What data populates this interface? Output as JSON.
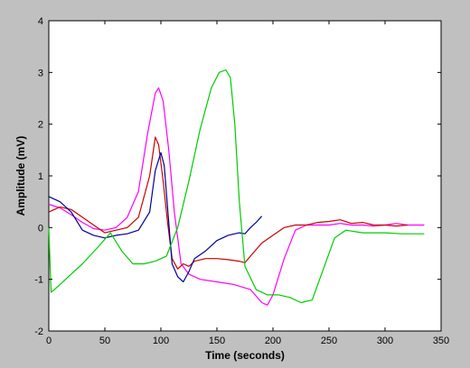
{
  "chart_data": {
    "type": "line",
    "title": "",
    "xlabel": "Time (seconds)",
    "ylabel": "Amplitude (mV)",
    "xlim": [
      0,
      350
    ],
    "ylim": [
      -2,
      4
    ],
    "xticks": [
      "0",
      "50",
      "100",
      "150",
      "200",
      "250",
      "300",
      "350"
    ],
    "yticks": [
      "-2",
      "-1",
      "0",
      "1",
      "2",
      "3",
      "4"
    ],
    "grid": false,
    "legend": "none",
    "series": [
      {
        "color": "#ff00ff",
        "x": [
          0,
          10,
          20,
          30,
          40,
          50,
          60,
          70,
          80,
          88,
          95,
          98,
          102,
          107,
          112,
          118,
          125,
          135,
          150,
          165,
          180,
          190,
          195,
          200,
          210,
          220,
          230,
          240,
          250,
          260,
          270,
          280,
          290,
          300,
          310,
          320,
          335
        ],
        "y": [
          0.45,
          0.38,
          0.25,
          0.1,
          -0.02,
          -0.05,
          0.0,
          0.2,
          0.7,
          1.8,
          2.6,
          2.7,
          2.45,
          1.5,
          0.3,
          -0.7,
          -0.9,
          -1.0,
          -1.05,
          -1.1,
          -1.2,
          -1.45,
          -1.5,
          -1.3,
          -0.6,
          -0.05,
          0.05,
          0.05,
          0.05,
          0.08,
          0.05,
          0.05,
          0.03,
          0.05,
          0.08,
          0.05,
          0.05
        ]
      },
      {
        "color": "#cc0000",
        "x": [
          0,
          10,
          20,
          30,
          40,
          50,
          60,
          70,
          80,
          90,
          95,
          98,
          102,
          106,
          110,
          115,
          120,
          125,
          130,
          140,
          150,
          160,
          170,
          175,
          180,
          190,
          200,
          210,
          220,
          230,
          240,
          250,
          260,
          270,
          280,
          290,
          300,
          310,
          320
        ],
        "y": [
          0.3,
          0.4,
          0.35,
          0.2,
          0.05,
          -0.1,
          -0.05,
          0.0,
          0.2,
          1.0,
          1.75,
          1.6,
          0.9,
          0.1,
          -0.6,
          -0.8,
          -0.7,
          -0.75,
          -0.65,
          -0.6,
          -0.6,
          -0.62,
          -0.65,
          -0.68,
          -0.55,
          -0.3,
          -0.15,
          0.0,
          0.05,
          0.05,
          0.1,
          0.12,
          0.15,
          0.08,
          0.1,
          0.05,
          0.05,
          0.03,
          0.05
        ]
      },
      {
        "color": "#000099",
        "x": [
          0,
          10,
          20,
          30,
          40,
          50,
          60,
          70,
          80,
          90,
          95,
          100,
          103,
          107,
          110,
          115,
          120,
          125,
          130,
          140,
          150,
          160,
          170,
          175,
          180,
          185,
          190
        ],
        "y": [
          0.6,
          0.5,
          0.3,
          -0.05,
          -0.15,
          -0.2,
          -0.15,
          -0.12,
          -0.05,
          0.3,
          1.1,
          1.45,
          1.2,
          0.1,
          -0.7,
          -0.95,
          -1.05,
          -0.85,
          -0.6,
          -0.45,
          -0.25,
          -0.15,
          -0.1,
          -0.12,
          0.0,
          0.1,
          0.22
        ]
      },
      {
        "color": "#00cc00",
        "x": [
          0,
          2,
          5,
          15,
          30,
          45,
          55,
          65,
          75,
          85,
          95,
          105,
          115,
          125,
          135,
          145,
          152,
          158,
          162,
          166,
          170,
          175,
          185,
          195,
          205,
          215,
          225,
          235,
          245,
          255,
          265,
          280,
          300,
          315,
          335
        ],
        "y": [
          0.0,
          -1.25,
          -1.2,
          -1.0,
          -0.7,
          -0.35,
          -0.1,
          -0.45,
          -0.7,
          -0.7,
          -0.65,
          -0.55,
          0.0,
          0.9,
          1.9,
          2.7,
          3.0,
          3.05,
          2.9,
          2.0,
          0.5,
          -0.75,
          -1.2,
          -1.3,
          -1.3,
          -1.35,
          -1.45,
          -1.4,
          -0.8,
          -0.2,
          -0.05,
          -0.1,
          -0.1,
          -0.12,
          -0.12
        ]
      }
    ]
  }
}
